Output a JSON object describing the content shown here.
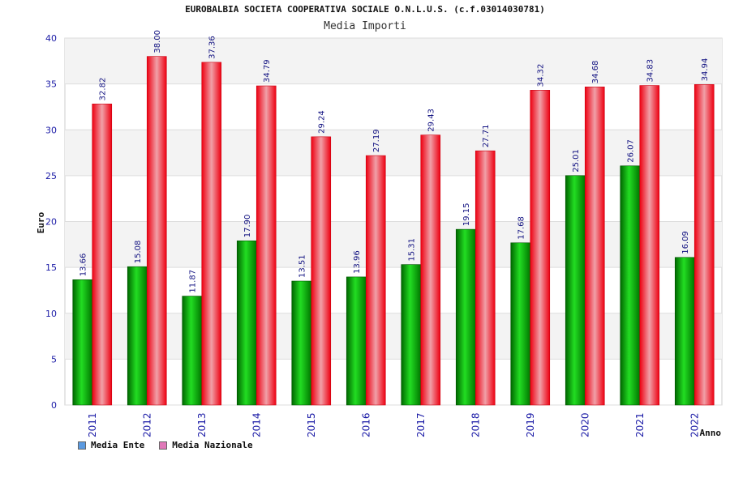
{
  "header": {
    "title": "EUROBALBIA SOCIETA COOPERATIVA SOCIALE O.N.L.U.S. (c.f.03014030781)",
    "subtitle": "Media Importi"
  },
  "legend": {
    "items": [
      {
        "label": "Media Ente",
        "color": "#5b9ae0"
      },
      {
        "label": "Media Nazionale",
        "color": "#e078b8"
      }
    ]
  },
  "chart_data": {
    "type": "bar",
    "title": "Media Importi",
    "xlabel": "Anno",
    "ylabel": "Euro",
    "ylim": [
      0,
      40
    ],
    "yticks": [
      0,
      5,
      10,
      15,
      20,
      25,
      30,
      35,
      40
    ],
    "categories": [
      "2011",
      "2012",
      "2013",
      "2014",
      "2015",
      "2016",
      "2017",
      "2018",
      "2019",
      "2020",
      "2021",
      "2022"
    ],
    "series": [
      {
        "name": "Media Ente",
        "color": "#00aa00",
        "values": [
          13.66,
          15.08,
          11.87,
          17.9,
          13.51,
          13.96,
          15.31,
          19.15,
          17.68,
          25.01,
          26.07,
          16.09
        ],
        "labels": [
          "13.66",
          "15.08",
          "11.87",
          "17.90",
          "13.51",
          "13.96",
          "15.31",
          "19.15",
          "17.68",
          "25.01",
          "26.07",
          "16.09"
        ]
      },
      {
        "name": "Media Nazionale",
        "color": "#ee1122",
        "values": [
          32.82,
          38.0,
          37.36,
          34.79,
          29.24,
          27.19,
          29.43,
          27.71,
          34.32,
          34.68,
          34.83,
          34.94
        ],
        "labels": [
          "32.82",
          "38.00",
          "37.36",
          "34.79",
          "29.24",
          "27.19",
          "29.43",
          "27.71",
          "34.32",
          "34.68",
          "34.83",
          "34.94"
        ]
      }
    ],
    "grid": true,
    "legend_position": "bottom-left"
  }
}
